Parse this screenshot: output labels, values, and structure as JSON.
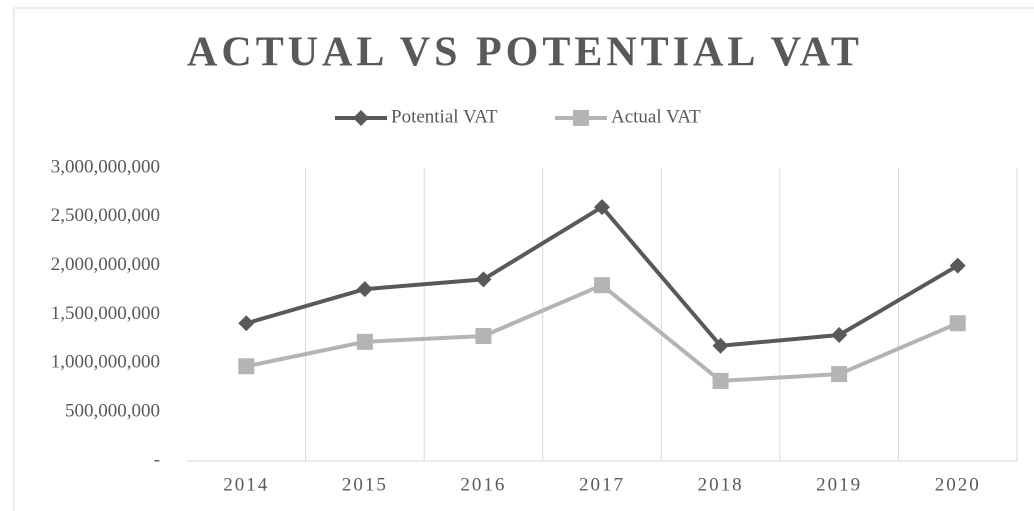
{
  "chart_data": {
    "type": "line",
    "title": "ACTUAL VS POTENTIAL VAT",
    "categories": [
      "2014",
      "2015",
      "2016",
      "2017",
      "2018",
      "2019",
      "2020"
    ],
    "series": [
      {
        "name": "Potential VAT",
        "color": "#595959",
        "marker": "diamond",
        "values": [
          1410000000,
          1760000000,
          1860000000,
          2600000000,
          1180000000,
          1290000000,
          2000000000
        ]
      },
      {
        "name": "Actual VAT",
        "color": "#b4b4b4",
        "marker": "square",
        "values": [
          970000000,
          1220000000,
          1280000000,
          1800000000,
          820000000,
          890000000,
          1410000000
        ]
      }
    ],
    "ylim": [
      0,
      3000000000
    ],
    "yticks": [
      {
        "value": 0,
        "label": "-"
      },
      {
        "value": 500000000,
        "label": "500,000,000"
      },
      {
        "value": 1000000000,
        "label": "1,000,000,000"
      },
      {
        "value": 1500000000,
        "label": "1,500,000,000"
      },
      {
        "value": 2000000000,
        "label": "2,000,000,000"
      },
      {
        "value": 2500000000,
        "label": "2,500,000,000"
      },
      {
        "value": 3000000000,
        "label": "3,000,000,000"
      }
    ],
    "grid": "vertical",
    "legend": "top"
  }
}
